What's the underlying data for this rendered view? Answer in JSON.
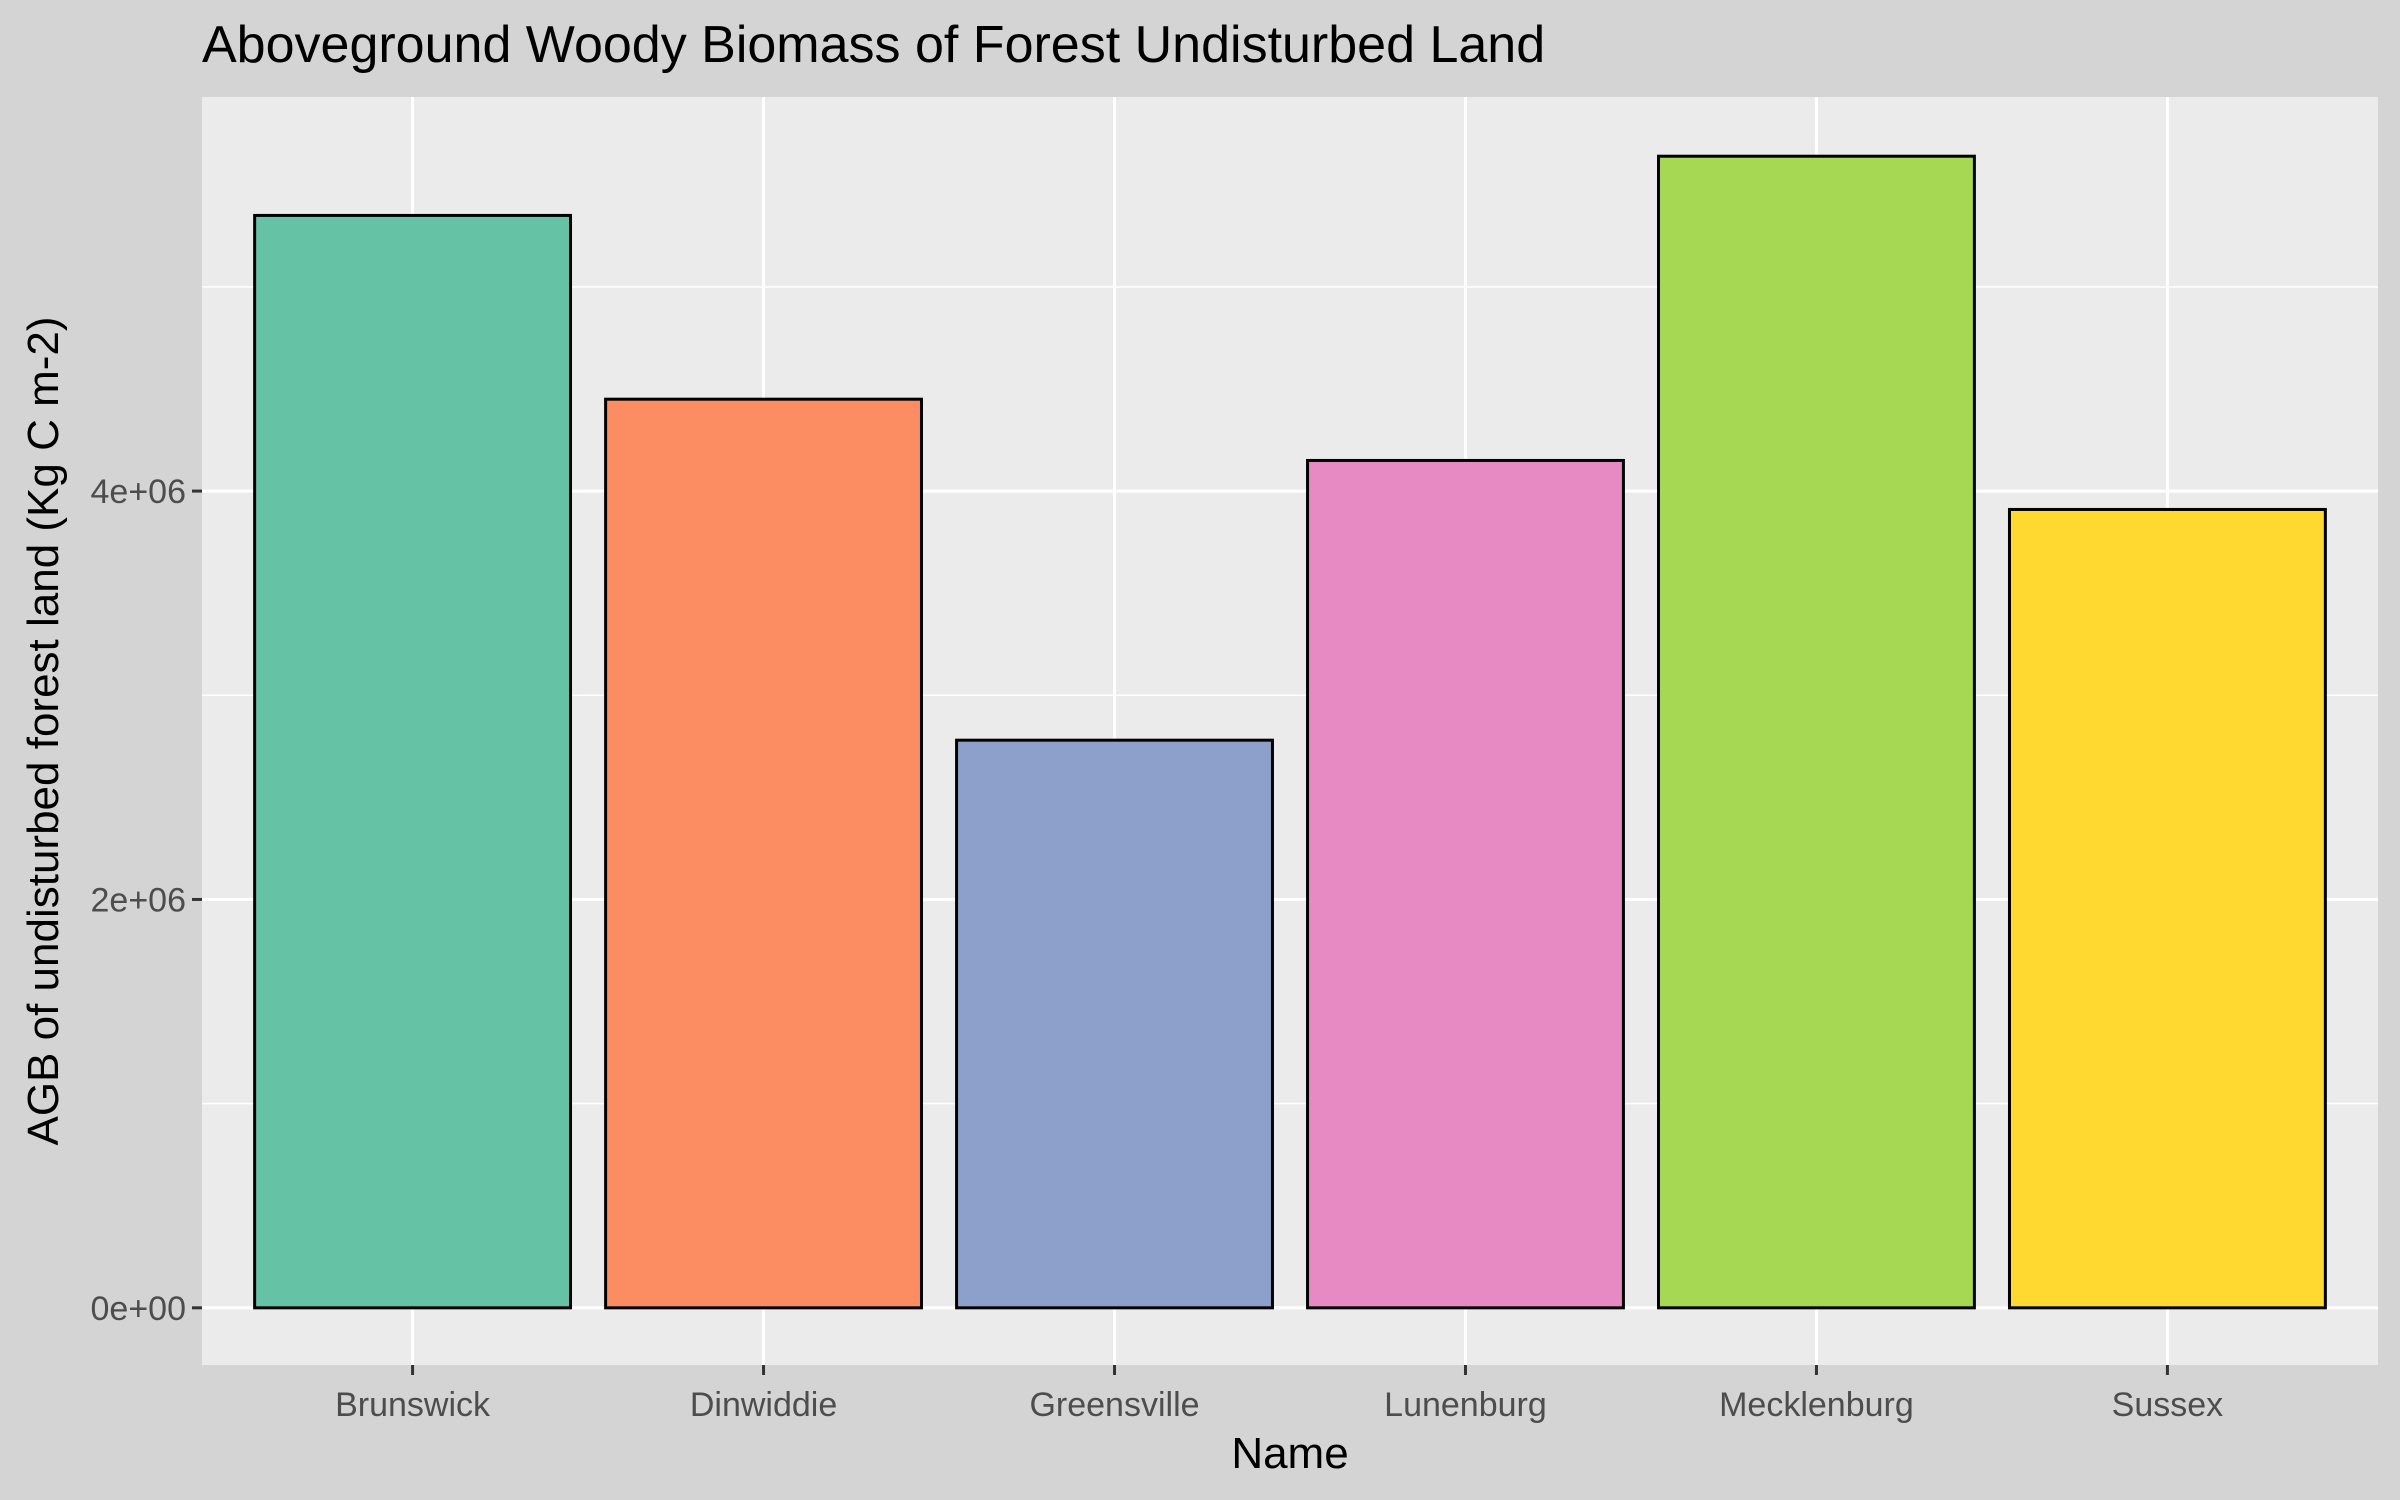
{
  "chart_data": {
    "type": "bar",
    "title": "Aboveground Woody Biomass of Forest Undisturbed Land",
    "xlabel": "Name",
    "ylabel": "AGB of undisturbed forest land (Kg C m-2)",
    "categories": [
      "Brunswick",
      "Dinwiddie",
      "Greensville",
      "Lunenburg",
      "Mecklenburg",
      "Sussex"
    ],
    "values": [
      5350000,
      4450000,
      2780000,
      4150000,
      5640000,
      3910000
    ],
    "colors": [
      "#66c2a5",
      "#fc8d62",
      "#8da0cb",
      "#e78ac3",
      "#a6d854",
      "#ffd92f"
    ],
    "ylim": [
      -280000,
      5930000
    ],
    "yticks": [
      0,
      2000000,
      4000000
    ],
    "ytick_labels": [
      "0e+00",
      "2e+06",
      "4e+06"
    ],
    "grid": true,
    "legend": "none"
  }
}
